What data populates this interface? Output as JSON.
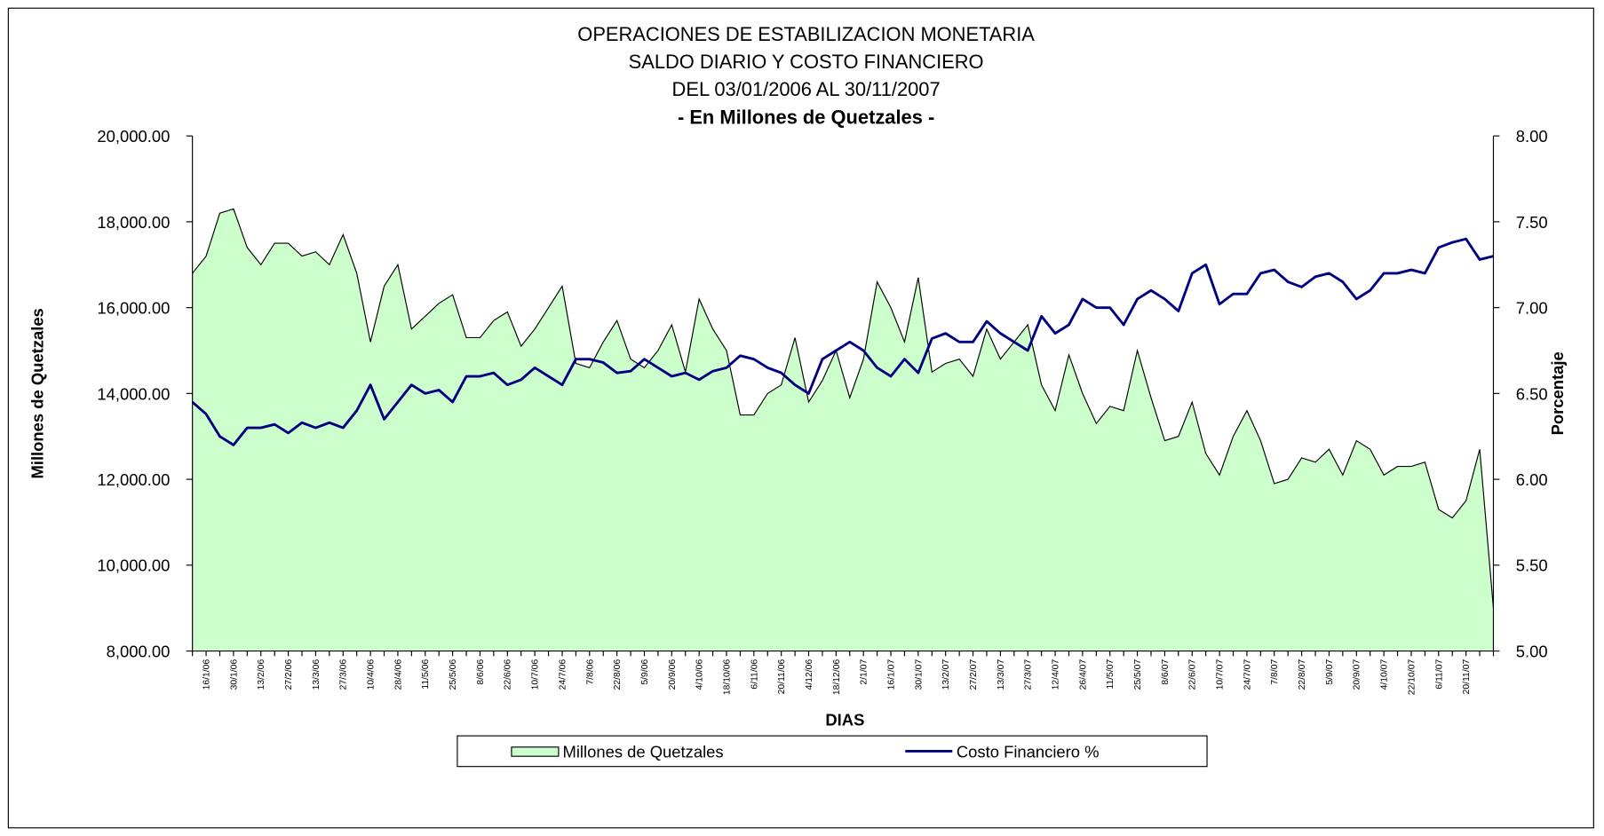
{
  "chart_data": {
    "type": "area-line",
    "title_lines": [
      "OPERACIONES DE ESTABILIZACION MONETARIA",
      "SALDO DIARIO Y COSTO FINANCIERO",
      "DEL 03/01/2006 AL 30/11/2007",
      "- En Millones de Quetzales -"
    ],
    "x_label": "DIAS",
    "y_label": "Millones de Quetzales",
    "y2_label": "Porcentaje",
    "categories": [
      null,
      "16/1/06",
      null,
      "30/1/06",
      null,
      "13/2/06",
      null,
      "27/2/06",
      null,
      "13/3/06",
      null,
      "27/3/06",
      null,
      "10/4/06",
      null,
      "28/4/06",
      null,
      "11/5/06",
      null,
      "25/5/06",
      null,
      "8/6/06",
      null,
      "22/6/06",
      null,
      "10/7/06",
      null,
      "24/7/06",
      null,
      "7/8/06",
      null,
      "22/8/06",
      null,
      "5/9/06",
      null,
      "20/9/06",
      null,
      "4/10/06",
      null,
      "18/10/06",
      null,
      "6/11/06",
      null,
      "20/11/06",
      null,
      "4/12/06",
      null,
      "18/12/06",
      null,
      "2/1/07",
      null,
      "16/1/07",
      null,
      "30/1/07",
      null,
      "13/2/07",
      null,
      "27/2/07",
      null,
      "13/3/07",
      null,
      "27/3/07",
      null,
      "12/4/07",
      null,
      "26/4/07",
      null,
      "11/5/07",
      null,
      "25/5/07",
      null,
      "8/6/07",
      null,
      "22/6/07",
      null,
      "10/7/07",
      null,
      "24/7/07",
      null,
      "7/8/07",
      null,
      "22/8/07",
      null,
      "5/9/07",
      null,
      "20/9/07",
      null,
      "4/10/07",
      null,
      "22/10/07",
      null,
      "6/11/07",
      null,
      "20/11/07",
      null,
      null
    ],
    "series": [
      {
        "name": "Millones de Quetzales",
        "color": "#ccffcc",
        "kind": "area",
        "values": [
          16800,
          17200,
          18200,
          18300,
          17400,
          17000,
          17500,
          17500,
          17200,
          17300,
          17000,
          17700,
          16800,
          15200,
          16500,
          17000,
          15500,
          15800,
          16100,
          16300,
          15300,
          15300,
          15700,
          15900,
          15100,
          15500,
          16000,
          16500,
          14700,
          14600,
          15200,
          15700,
          14800,
          14600,
          15000,
          15600,
          14500,
          16200,
          15500,
          15000,
          13500,
          13500,
          14000,
          14200,
          15300,
          13800,
          14300,
          15000,
          13900,
          14800,
          16600,
          16000,
          15200,
          16700,
          14500,
          14700,
          14800,
          14400,
          15500,
          14800,
          15200,
          15600,
          14200,
          13600,
          14900,
          14000,
          13300,
          13700,
          13600,
          15000,
          13900,
          12900,
          13000,
          13800,
          12600,
          12100,
          13000,
          13600,
          12900,
          11900,
          12000,
          12500,
          12400,
          12700,
          12100,
          12900,
          12700,
          12100,
          12300,
          12300,
          12400,
          11300,
          11100,
          11500,
          12700,
          9000
        ]
      },
      {
        "name": "Costo Financiero %",
        "color": "#000080",
        "kind": "line",
        "axis": "y2",
        "values": [
          6.45,
          6.38,
          6.25,
          6.2,
          6.3,
          6.3,
          6.32,
          6.27,
          6.33,
          6.3,
          6.33,
          6.3,
          6.4,
          6.55,
          6.35,
          6.45,
          6.55,
          6.5,
          6.52,
          6.45,
          6.6,
          6.6,
          6.62,
          6.55,
          6.58,
          6.65,
          6.6,
          6.55,
          6.7,
          6.7,
          6.68,
          6.62,
          6.63,
          6.7,
          6.65,
          6.6,
          6.62,
          6.58,
          6.63,
          6.65,
          6.72,
          6.7,
          6.65,
          6.62,
          6.55,
          6.5,
          6.7,
          6.75,
          6.8,
          6.75,
          6.65,
          6.6,
          6.7,
          6.62,
          6.82,
          6.85,
          6.8,
          6.8,
          6.92,
          6.85,
          6.8,
          6.75,
          6.95,
          6.85,
          6.9,
          7.05,
          7.0,
          7.0,
          6.9,
          7.05,
          7.1,
          7.05,
          6.98,
          7.2,
          7.25,
          7.02,
          7.08,
          7.08,
          7.2,
          7.22,
          7.15,
          7.12,
          7.18,
          7.2,
          7.15,
          7.05,
          7.1,
          7.2,
          7.2,
          7.22,
          7.2,
          7.35,
          7.38,
          7.4,
          7.28,
          7.3
        ]
      }
    ],
    "ylim": [
      8000,
      20000
    ],
    "yticks": [
      {
        "value": 8000,
        "label": "8,000.00"
      },
      {
        "value": 10000,
        "label": "10,000.00"
      },
      {
        "value": 12000,
        "label": "12,000.00"
      },
      {
        "value": 14000,
        "label": "14,000.00"
      },
      {
        "value": 16000,
        "label": "16,000.00"
      },
      {
        "value": 18000,
        "label": "18,000.00"
      },
      {
        "value": 20000,
        "label": "20,000.00"
      }
    ],
    "y2lim": [
      5,
      8
    ],
    "y2ticks": [
      {
        "value": 5,
        "label": "5.00"
      },
      {
        "value": 5.5,
        "label": "5.50"
      },
      {
        "value": 6,
        "label": "6.00"
      },
      {
        "value": 6.5,
        "label": "6.50"
      },
      {
        "value": 7,
        "label": "7.00"
      },
      {
        "value": 7.5,
        "label": "7.50"
      },
      {
        "value": 8,
        "label": "8.00"
      }
    ],
    "legend": "bottom"
  }
}
